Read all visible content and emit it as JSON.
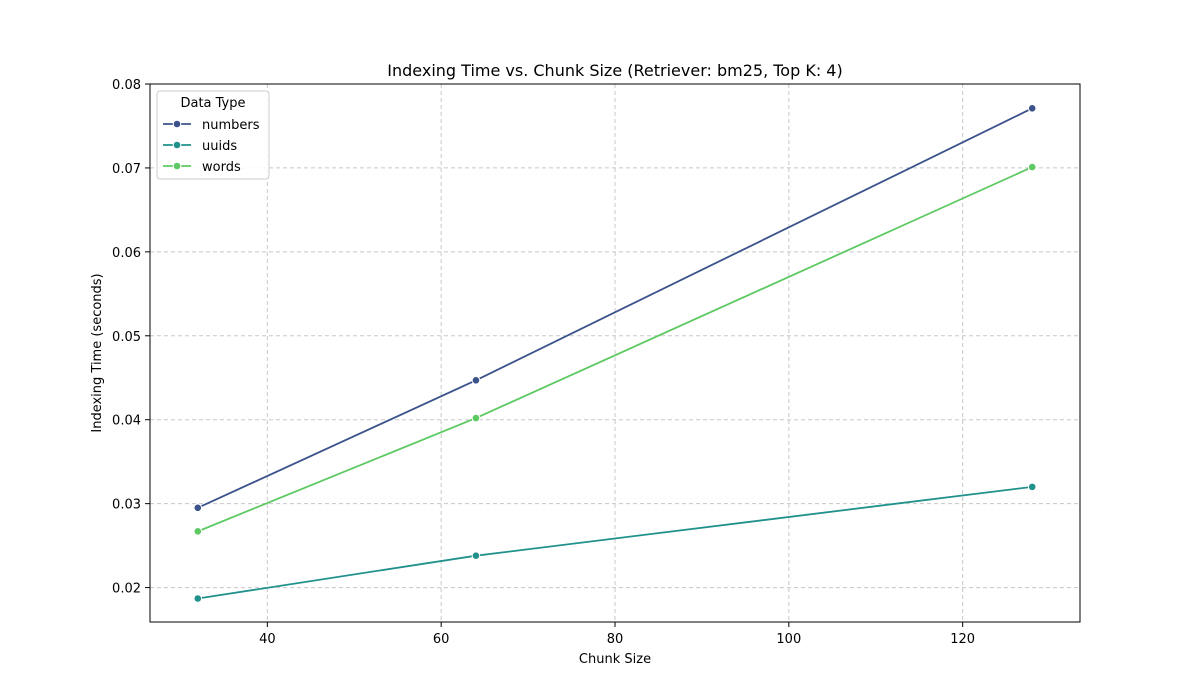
{
  "chart_data": {
    "type": "line",
    "title": "Indexing Time vs. Chunk Size (Retriever: bm25, Top K: 4)",
    "xlabel": "Chunk Size",
    "ylabel": "Indexing Time (seconds)",
    "x": [
      32,
      64,
      128
    ],
    "xlim": [
      26.5,
      133.5
    ],
    "ylim": [
      0.0159,
      0.08
    ],
    "xticks": [
      40,
      60,
      80,
      100,
      120
    ],
    "yticks": [
      0.02,
      0.03,
      0.04,
      0.05,
      0.06,
      0.07,
      0.08
    ],
    "xtick_labels": [
      "40",
      "60",
      "80",
      "100",
      "120"
    ],
    "ytick_labels": [
      "0.02",
      "0.03",
      "0.04",
      "0.05",
      "0.06",
      "0.07",
      "0.08"
    ],
    "grid": true,
    "legend": {
      "title": "Data Type",
      "placement": "top-left"
    },
    "series": [
      {
        "name": "numbers",
        "color": "#3b528b",
        "values": [
          0.0295,
          0.0447,
          0.0771
        ]
      },
      {
        "name": "uuids",
        "color": "#21918c",
        "values": [
          0.0187,
          0.0238,
          0.032
        ]
      },
      {
        "name": "words",
        "color": "#5ec962",
        "values": [
          0.0267,
          0.0402,
          0.0701
        ]
      }
    ]
  }
}
